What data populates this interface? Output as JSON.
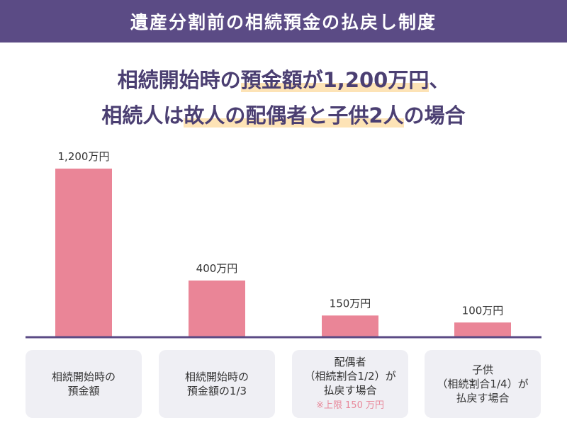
{
  "header": {
    "title": "遺産分割前の相続預金の払戻し制度"
  },
  "subtitle": {
    "line1": [
      {
        "text": "相続開始時の",
        "hl": false
      },
      {
        "text": "預金額が1,200万円",
        "hl": true
      },
      {
        "text": "、",
        "hl": false
      }
    ],
    "line2": [
      {
        "text": "相続人は",
        "hl": false
      },
      {
        "text": "故人の配偶者と子供2人",
        "hl": true
      },
      {
        "text": "の場合",
        "hl": false
      }
    ]
  },
  "chart_data": {
    "type": "bar",
    "values": [
      1200,
      400,
      150,
      100
    ],
    "value_labels": [
      "1,200万円",
      "400万円",
      "150万円",
      "100万円"
    ],
    "categories": [
      {
        "lines": [
          "相続開始時の",
          "預金額"
        ],
        "note": ""
      },
      {
        "lines": [
          "相続開始時の",
          "預金額の1/3"
        ],
        "note": ""
      },
      {
        "lines": [
          "配偶者",
          "（相続割合1/2）が",
          "払戻す場合"
        ],
        "note": "※上限 150 万円"
      },
      {
        "lines": [
          "子供",
          "（相続割合1/4）が",
          "払戻す場合"
        ],
        "note": ""
      }
    ],
    "ylim": [
      0,
      1200
    ],
    "grid": false,
    "colors": {
      "bar": "#ea8597",
      "axis": "#5b4b85"
    }
  }
}
